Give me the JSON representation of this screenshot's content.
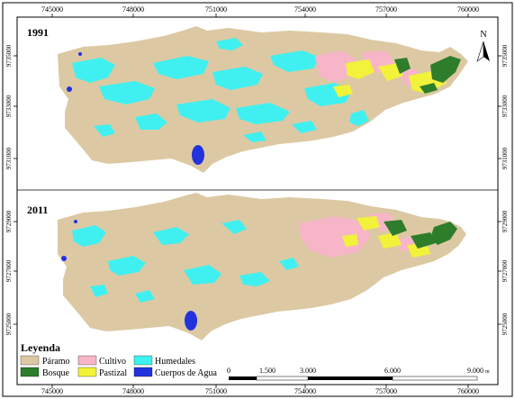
{
  "top_ticks": [
    "745000",
    "748000",
    "751000",
    "754000",
    "757000",
    "760000"
  ],
  "bottom_ticks": [
    "745000",
    "748000",
    "751000",
    "754000",
    "757000",
    "760000"
  ],
  "left_ticks": [
    "9735000",
    "9733000",
    "9731000",
    "9729000",
    "9727000",
    "9725000"
  ],
  "right_ticks": [
    "9735000",
    "9733000",
    "9731000",
    "9729000",
    "9727000",
    "9725000"
  ],
  "maps": [
    {
      "year": "1991"
    },
    {
      "year": "2011"
    }
  ],
  "north_label": "N",
  "legend": {
    "title": "Leyenda",
    "items": [
      {
        "label": "Páramo",
        "color": "#dcc9a3"
      },
      {
        "label": "Bosque",
        "color": "#2e7d2b"
      },
      {
        "label": "Cultivo",
        "color": "#f7b6c8"
      },
      {
        "label": "Pastizal",
        "color": "#f2f23a"
      },
      {
        "label": "Humedales",
        "color": "#40f0f0"
      },
      {
        "label": "Cuerpos de Agua",
        "color": "#2233dd"
      }
    ]
  },
  "scale_bar": {
    "ticks": [
      "0",
      "1.500",
      "3.000",
      "6.000",
      "9.000"
    ],
    "unit": "m"
  }
}
